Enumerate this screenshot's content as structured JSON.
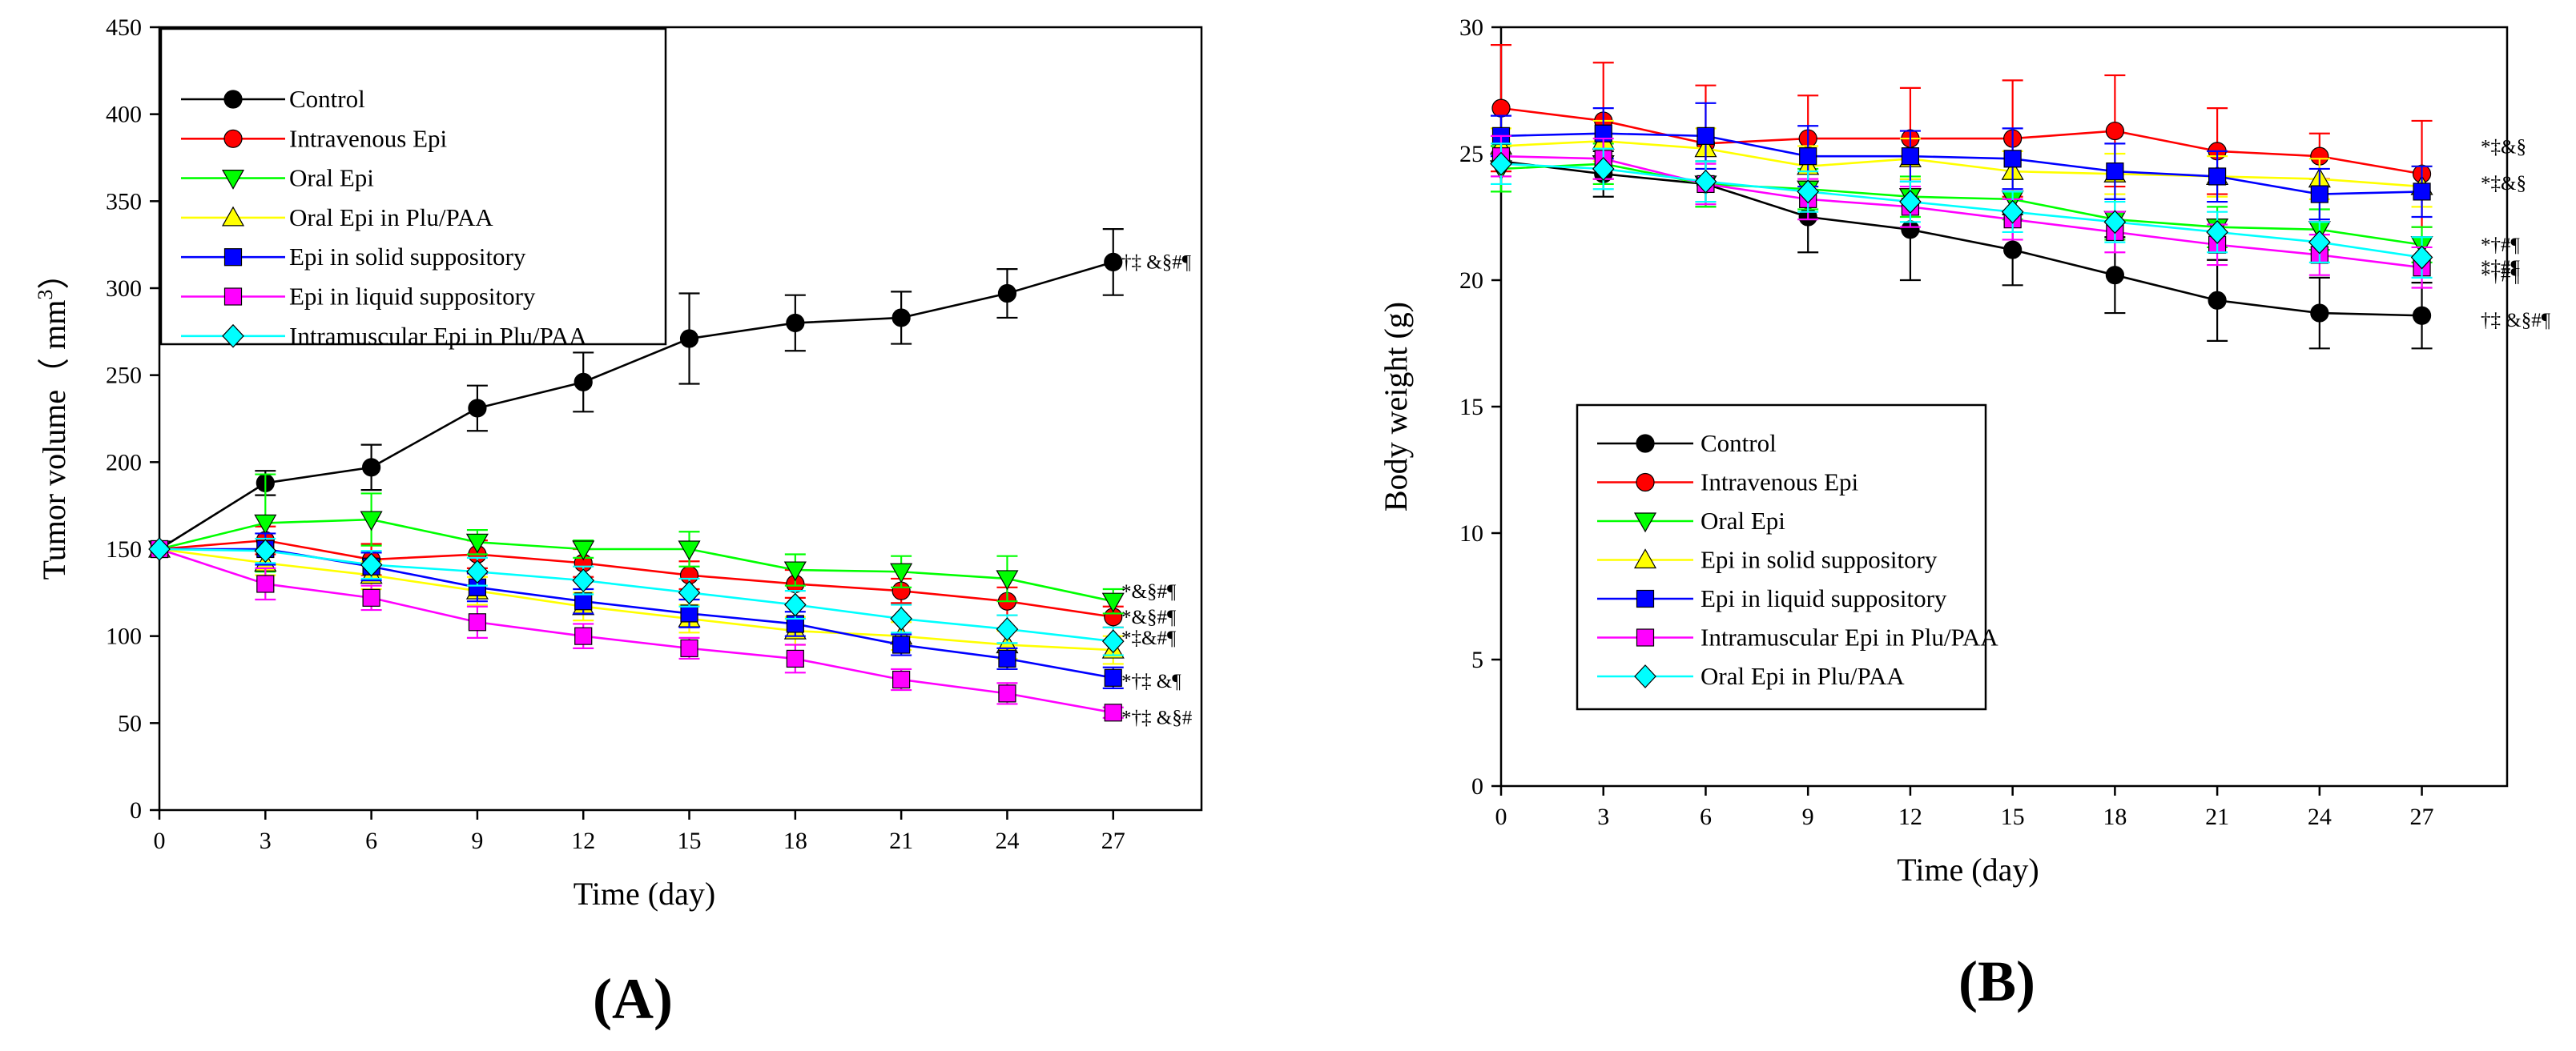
{
  "figure": {
    "colors": {
      "Control": "#000000",
      "Intravenous Epi": "#ff0000",
      "Oral Epi": "#00ff00",
      "Oral Epi in Plu/PAA": "#ffff00",
      "Epi in solid suppository": "#0000ff",
      "Epi in liquid suppository": "#ff00ff",
      "Intramuscular Epi in Plu/PAA": "#00ffff",
      "Epi in solid suppository (B)": "#ffff00",
      "Epi in liquid suppository (B)": "#0000ff",
      "Intramuscular Epi in Plu/PAA (B)": "#ff00ff",
      "Oral Epi in Plu/PAA (B)": "#00ffff"
    }
  },
  "chart_data": [
    {
      "id": "A",
      "panel_label": "(A)",
      "type": "line",
      "xlabel": "Time (day)",
      "ylabel": "Tumor volume（ mm",
      "ylabel_sup": "3",
      "ylabel_end": "）",
      "xlim": [
        0,
        29.5
      ],
      "ylim": [
        0,
        450
      ],
      "xticks": [
        0,
        3,
        6,
        9,
        12,
        15,
        18,
        21,
        24,
        27
      ],
      "yticks": [
        0,
        50,
        100,
        150,
        200,
        250,
        300,
        350,
        400,
        450
      ],
      "x": [
        0,
        3,
        6,
        9,
        12,
        15,
        18,
        21,
        24,
        27
      ],
      "series": [
        {
          "name": "Control",
          "color": "#000000",
          "marker": "circle",
          "values": [
            150,
            188,
            197,
            231,
            246,
            271,
            280,
            283,
            297,
            315
          ],
          "errors": [
            0,
            7,
            13,
            13,
            17,
            26,
            16,
            15,
            14,
            19
          ],
          "annotation": "†‡ &§#¶"
        },
        {
          "name": "Intravenous Epi",
          "color": "#ff0000",
          "marker": "circle",
          "values": [
            150,
            155,
            144,
            147,
            142,
            135,
            130,
            126,
            120,
            111
          ],
          "errors": [
            0,
            8,
            9,
            8,
            8,
            8,
            8,
            7,
            8,
            6
          ],
          "annotation": "*&§#¶"
        },
        {
          "name": "Oral Epi",
          "color": "#00ff00",
          "marker": "triangle-down",
          "values": [
            150,
            165,
            167,
            154,
            150,
            150,
            138,
            137,
            133,
            120
          ],
          "errors": [
            0,
            28,
            15,
            7,
            5,
            10,
            9,
            9,
            13,
            7
          ],
          "annotation": "*&§#¶"
        },
        {
          "name": "Oral Epi in Plu/PAA",
          "color": "#ffff00",
          "marker": "triangle-up",
          "values": [
            150,
            142,
            135,
            126,
            117,
            110,
            103,
            100,
            95,
            92
          ],
          "errors": [
            0,
            7,
            8,
            8,
            8,
            8,
            8,
            8,
            8,
            8
          ],
          "annotation": ""
        },
        {
          "name": "Epi in solid suppository",
          "color": "#0000ff",
          "marker": "square",
          "values": [
            150,
            150,
            140,
            128,
            120,
            113,
            107,
            95,
            87,
            76
          ],
          "errors": [
            0,
            9,
            8,
            8,
            7,
            8,
            7,
            6,
            6,
            6
          ],
          "annotation": "*†‡ &¶"
        },
        {
          "name": "Epi in liquid suppository",
          "color": "#ff00ff",
          "marker": "square",
          "values": [
            150,
            130,
            122,
            108,
            100,
            93,
            87,
            75,
            67,
            56
          ],
          "errors": [
            0,
            9,
            7,
            9,
            7,
            6,
            8,
            6,
            6,
            3
          ],
          "annotation": "*†‡ &§#"
        },
        {
          "name": "Intramuscular Epi in Plu/PAA",
          "color": "#00ffff",
          "marker": "diamond",
          "values": [
            150,
            149,
            141,
            137,
            132,
            125,
            118,
            110,
            104,
            97
          ],
          "errors": [
            0,
            7,
            8,
            8,
            8,
            8,
            8,
            8,
            8,
            8
          ],
          "annotation": "*‡&#¶"
        }
      ]
    },
    {
      "id": "B",
      "panel_label": "(B)",
      "type": "line",
      "xlabel": "Time (day)",
      "ylabel": "Body weight (g)",
      "xlim": [
        0,
        29.5
      ],
      "ylim": [
        0,
        30
      ],
      "xticks": [
        0,
        3,
        6,
        9,
        12,
        15,
        18,
        21,
        24,
        27
      ],
      "yticks": [
        0,
        5,
        10,
        15,
        20,
        25,
        30
      ],
      "x": [
        0,
        3,
        6,
        9,
        12,
        15,
        18,
        21,
        24,
        27
      ],
      "series": [
        {
          "name": "Control",
          "color": "#000000",
          "marker": "circle",
          "values": [
            24.7,
            24.2,
            23.8,
            22.5,
            22.0,
            21.2,
            20.2,
            19.2,
            18.7,
            18.6
          ],
          "errors": [
            0.6,
            0.9,
            0.9,
            1.4,
            2.0,
            1.4,
            1.5,
            1.6,
            1.4,
            1.3
          ],
          "annotation": "†‡ &§#¶"
        },
        {
          "name": "Intravenous Epi",
          "color": "#ff0000",
          "marker": "circle",
          "values": [
            26.8,
            26.3,
            25.4,
            25.6,
            25.6,
            25.6,
            25.9,
            25.1,
            24.9,
            24.2
          ],
          "errors": [
            2.5,
            2.3,
            2.3,
            1.7,
            2.0,
            2.3,
            2.2,
            1.7,
            0.9,
            2.1
          ],
          "annotation": "*‡&§"
        },
        {
          "name": "Oral Epi",
          "color": "#00ff00",
          "marker": "triangle-down",
          "values": [
            24.4,
            24.6,
            23.8,
            23.6,
            23.3,
            23.2,
            22.4,
            22.1,
            22.0,
            21.4
          ],
          "errors": [
            0.9,
            0.8,
            0.9,
            0.8,
            0.8,
            0.8,
            0.8,
            0.8,
            0.8,
            0.7
          ],
          "annotation": "*†#¶"
        },
        {
          "name": "Epi in solid suppository",
          "color": "#ffff00",
          "marker": "triangle-up",
          "values": [
            25.3,
            25.5,
            25.2,
            24.5,
            24.8,
            24.3,
            24.2,
            24.1,
            24.0,
            23.7
          ],
          "errors": [
            0.7,
            0.8,
            0.8,
            0.8,
            0.8,
            0.8,
            0.8,
            0.8,
            0.8,
            0.8
          ],
          "annotation": "*‡&§"
        },
        {
          "name": "Epi in liquid suppository",
          "color": "#0000ff",
          "marker": "square",
          "values": [
            25.7,
            25.8,
            25.7,
            24.9,
            24.9,
            24.8,
            24.3,
            24.1,
            23.4,
            23.5
          ],
          "errors": [
            0.8,
            1.0,
            1.3,
            1.2,
            1.0,
            1.2,
            1.1,
            1.0,
            1.0,
            1.0
          ],
          "annotation": ""
        },
        {
          "name": "Intramuscular Epi in Plu/PAA",
          "color": "#ff00ff",
          "marker": "square",
          "values": [
            24.9,
            24.8,
            23.8,
            23.2,
            22.9,
            22.4,
            21.9,
            21.4,
            21.0,
            20.5
          ],
          "errors": [
            0.8,
            0.8,
            0.8,
            0.8,
            0.8,
            0.8,
            0.8,
            0.8,
            0.8,
            0.8
          ],
          "annotation": "*†#¶"
        },
        {
          "name": "Oral Epi in Plu/PAA",
          "color": "#00ffff",
          "marker": "diamond",
          "values": [
            24.6,
            24.4,
            23.9,
            23.5,
            23.1,
            22.7,
            22.3,
            21.9,
            21.5,
            20.9
          ],
          "errors": [
            0.8,
            0.8,
            0.8,
            0.8,
            0.8,
            0.8,
            0.8,
            0.8,
            0.8,
            0.8
          ],
          "annotation": "*†#¶"
        }
      ]
    }
  ]
}
